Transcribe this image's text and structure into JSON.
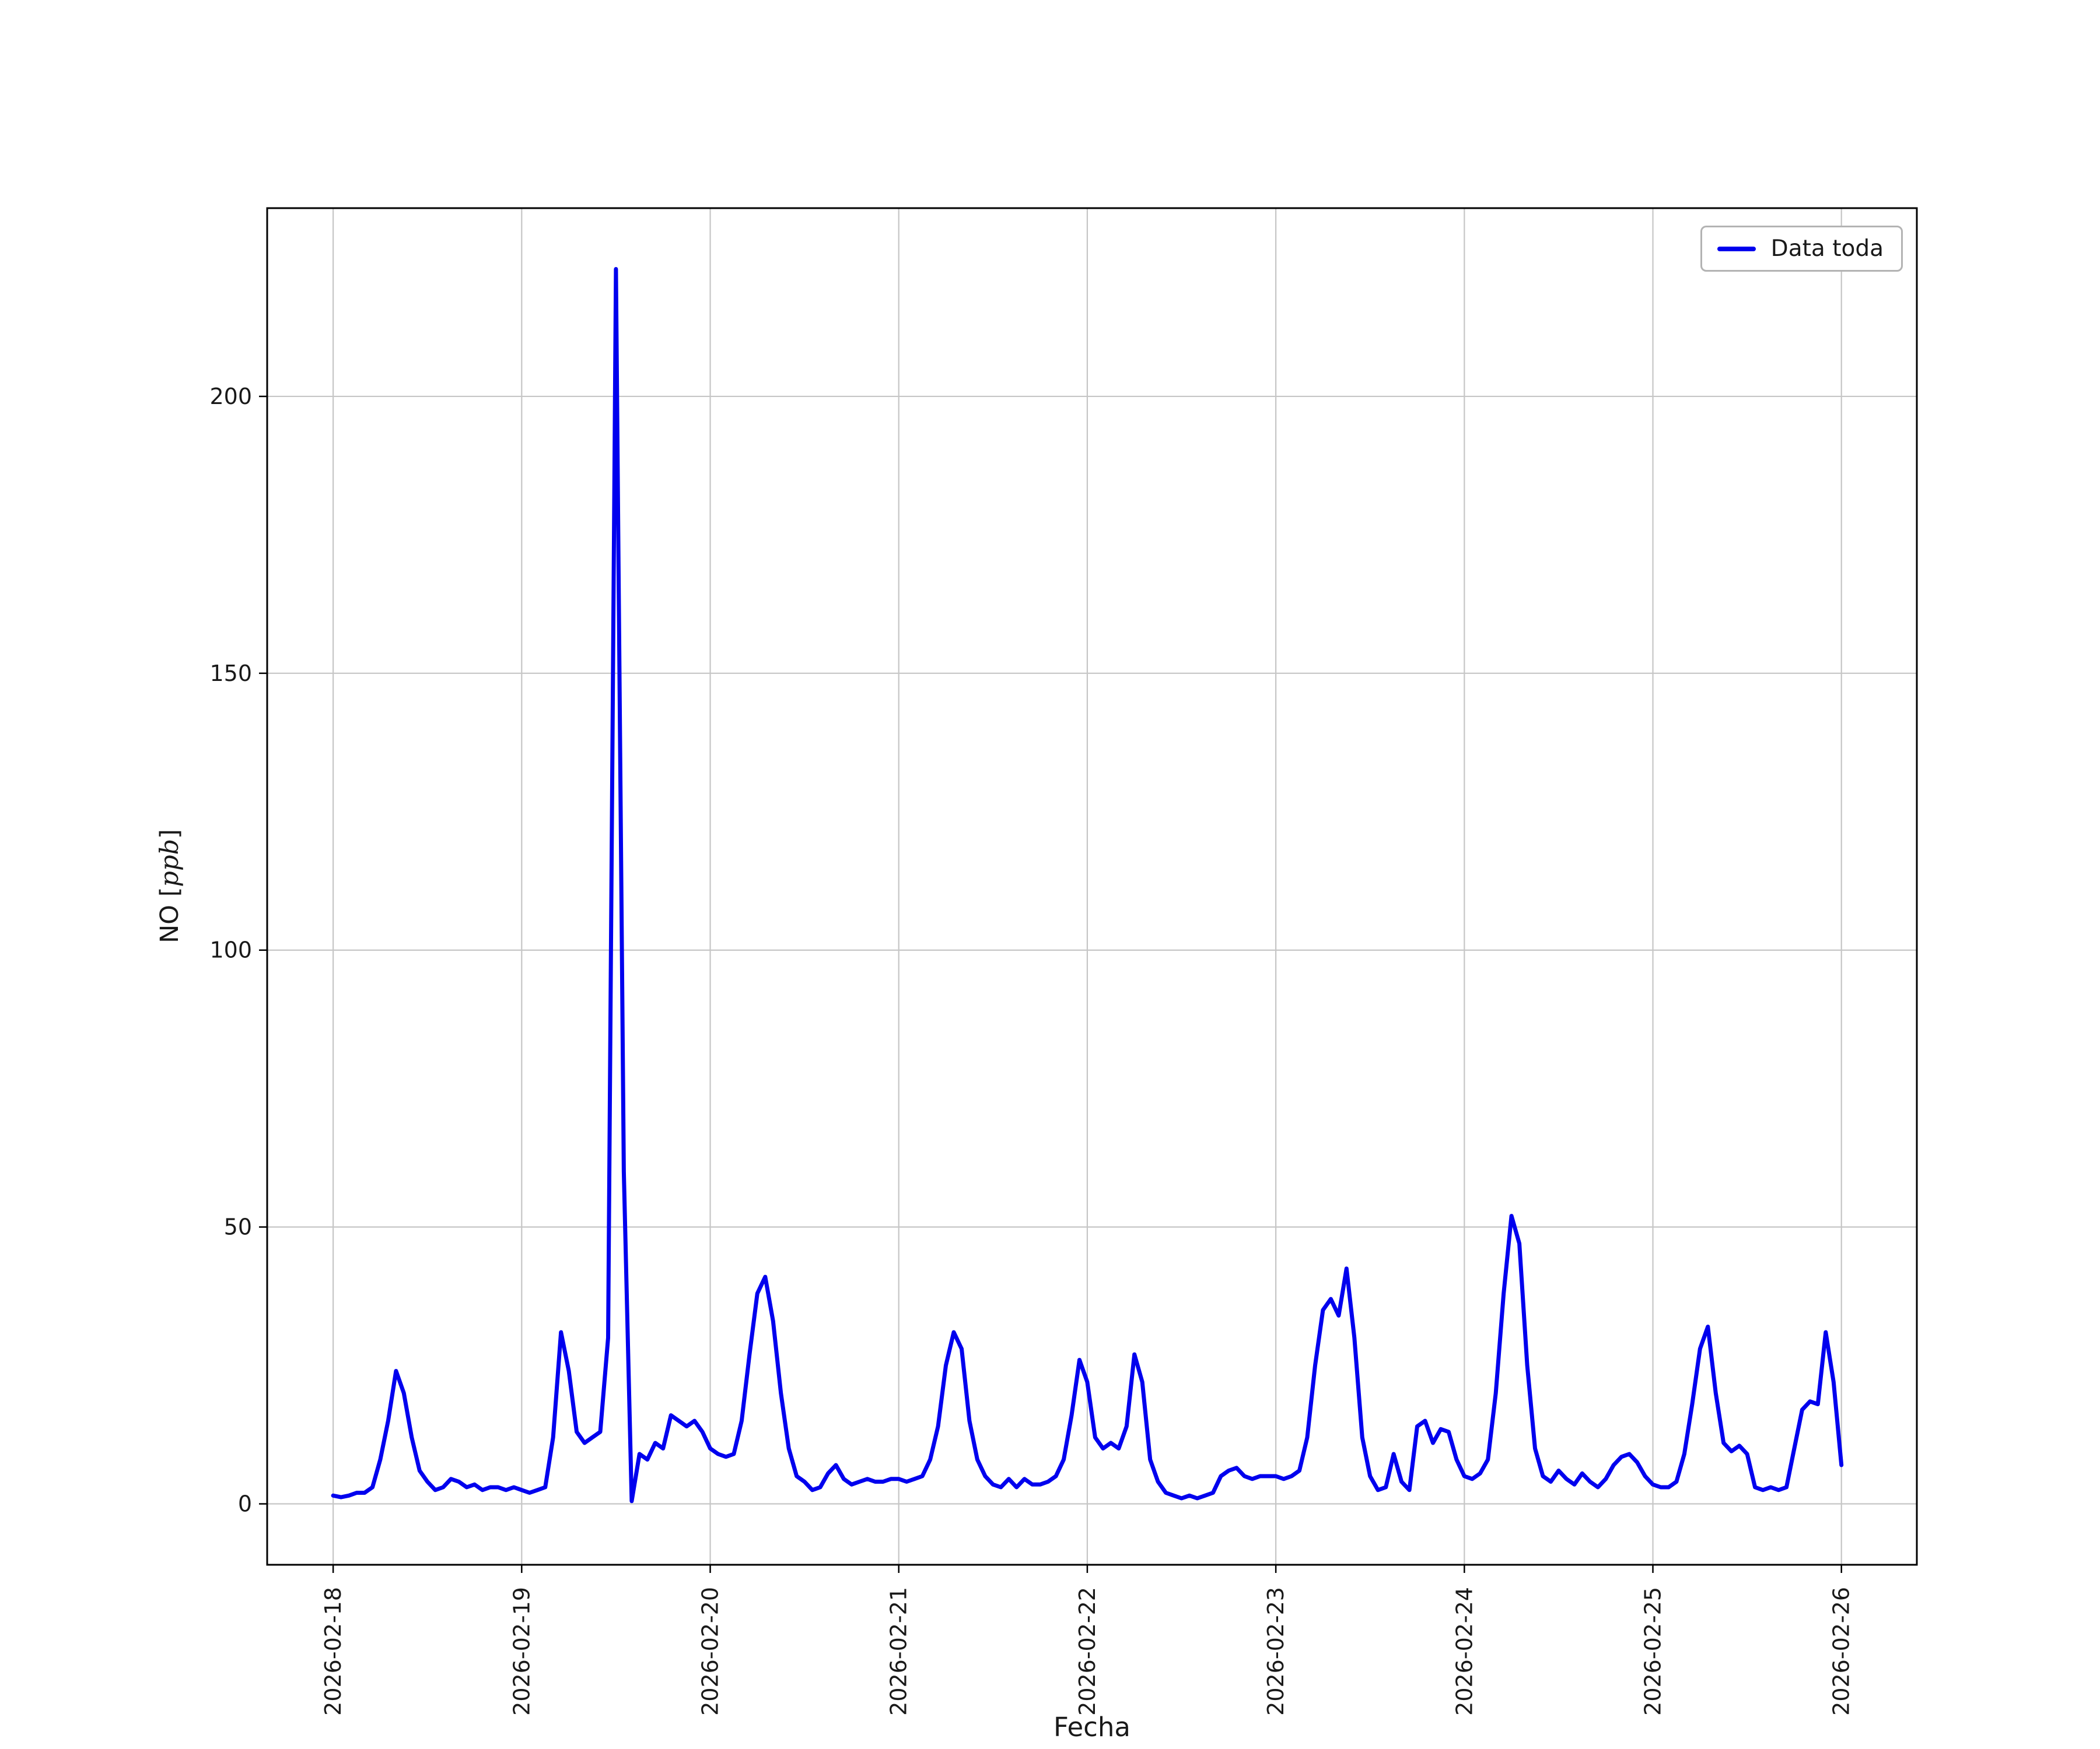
{
  "chart_data": {
    "type": "line",
    "title": "",
    "xlabel": "Fecha",
    "ylabel": "NO [ppb]",
    "ylabel_parts": {
      "pre": "NO [",
      "italic": "ppb",
      "post": "]"
    },
    "legend_label": "Data toda",
    "legend_position": "upper right",
    "grid": true,
    "line_color": "#0000EE",
    "axis_text_color": "#191919",
    "grid_color": "#c6c6c6",
    "x_tick_labels": [
      "2026-02-18",
      "2026-02-19",
      "2026-02-20",
      "2026-02-21",
      "2026-02-22",
      "2026-02-23",
      "2026-02-24",
      "2026-02-25",
      "2026-02-26"
    ],
    "y_ticks": [
      0,
      50,
      100,
      150,
      200
    ],
    "xlim_days": [
      -0.35,
      8.4
    ],
    "ylim": [
      -11.0,
      234.0
    ],
    "x_start_label": "2026-02-18 00:00",
    "sample_interval_hours": 1,
    "series": [
      {
        "name": "Data toda",
        "values": [
          1.5,
          1.2,
          1.5,
          2,
          2,
          3,
          8,
          15,
          24,
          20,
          12,
          6,
          4,
          2.5,
          3,
          4.5,
          4,
          3,
          3.5,
          2.5,
          3,
          3,
          2.5,
          3,
          2.5,
          2,
          2.5,
          3,
          12,
          31,
          24,
          13,
          11,
          12,
          13,
          30,
          223,
          60,
          0.5,
          9,
          8,
          11,
          10,
          16,
          15,
          14,
          15,
          13,
          10,
          9,
          8.5,
          9,
          15,
          27,
          38,
          41,
          33,
          20,
          10,
          5,
          4,
          2.5,
          3,
          5.5,
          7,
          4.5,
          3.5,
          4,
          4.5,
          4,
          4,
          4.5,
          4.5,
          4,
          4.5,
          5,
          8,
          14,
          25,
          31,
          28,
          15,
          8,
          5,
          3.5,
          3,
          4.5,
          3,
          4.5,
          3.5,
          3.5,
          4,
          5,
          8,
          16,
          26,
          22,
          12,
          10,
          11,
          10,
          14,
          27,
          22,
          8,
          4,
          2,
          1.5,
          1,
          1.5,
          1,
          1.5,
          2,
          5,
          6,
          6.5,
          5,
          4.5,
          5,
          5,
          5,
          4.5,
          5,
          6,
          12,
          25,
          35,
          37,
          34,
          42.5,
          30,
          12,
          5,
          2.5,
          3,
          9,
          4,
          2.5,
          14,
          15,
          11,
          13.5,
          13,
          8,
          5,
          4.5,
          5.5,
          8,
          20,
          38,
          52,
          47,
          25,
          10,
          5,
          4,
          6,
          4.5,
          3.5,
          5.5,
          4,
          3,
          4.5,
          7,
          8.5,
          9,
          7.5,
          5,
          3.5,
          3,
          3,
          4,
          9,
          18,
          28,
          32,
          20,
          11,
          9.5,
          10.5,
          9,
          3,
          2.5,
          3,
          2.5,
          3,
          10,
          17,
          18.5,
          18,
          31,
          22,
          7
        ]
      }
    ]
  }
}
